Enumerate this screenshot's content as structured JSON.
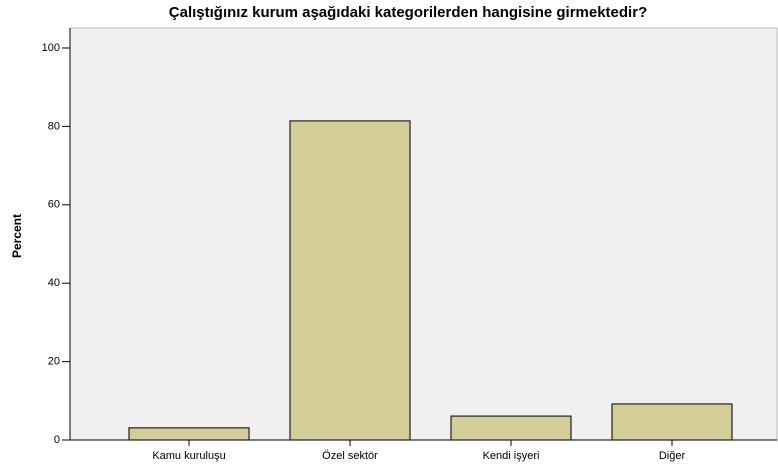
{
  "chart_data": {
    "type": "bar",
    "title": "Çalıştığınız kurum aşağıdaki kategorilerden hangisine girmektedir?",
    "y_label": "Percent",
    "categories": [
      "Kamu kuruluşu",
      "Özel sektör",
      "Kendi işyeri",
      "Diğer"
    ],
    "values": [
      3.1,
      81.4,
      6.1,
      9.2
    ],
    "color": "#d3ce97",
    "ylim": [
      0,
      100
    ],
    "yticks": [
      0,
      20,
      40,
      60,
      80,
      100
    ],
    "grid": false
  }
}
